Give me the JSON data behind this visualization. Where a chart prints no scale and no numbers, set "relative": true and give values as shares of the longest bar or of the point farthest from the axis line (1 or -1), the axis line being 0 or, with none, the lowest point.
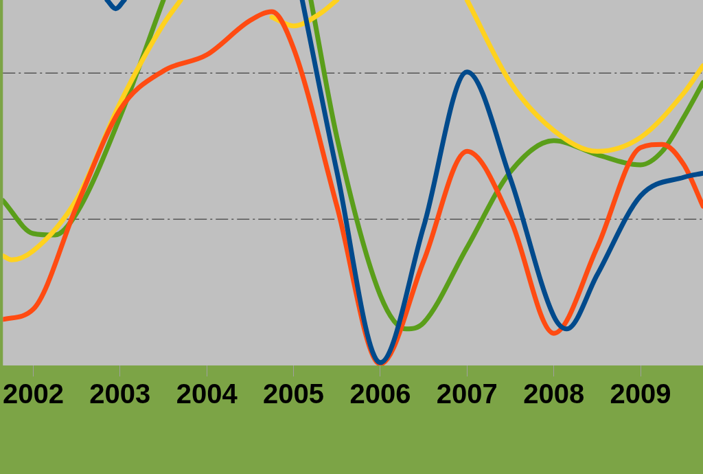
{
  "chart_data": {
    "type": "line",
    "relative": true,
    "xlim": [
      2001.65,
      2009.72
    ],
    "xticks": [
      2002,
      2003,
      2004,
      2005,
      2006,
      2007,
      2008,
      2009
    ],
    "tick_labels": "x",
    "grid": false,
    "legend": false,
    "marker": "none",
    "line_style": "solid",
    "ref_lines": [
      {
        "axis": "y",
        "value": 0.8,
        "color": "#404040",
        "line_style": "dashed"
      },
      {
        "axis": "y",
        "value": 0.4,
        "color": "#404040",
        "line_style": "dashed"
      }
    ],
    "series": [
      {
        "color": "#004a8c",
        "x": [
          2002.85,
          2002.95,
          2003.05,
          2003.2,
          2005.0,
          2005.1,
          2005.5,
          2006,
          2006.5,
          2007,
          2007.5,
          2008,
          2008.15,
          2008.5,
          2009,
          2009.5,
          2009.72
        ],
        "values": [
          1.0,
          0.976,
          1.0,
          null,
          null,
          1.0,
          0.53,
          0.008,
          0.38,
          0.803,
          0.511,
          0.135,
          0.1,
          0.248,
          0.464,
          0.515,
          0.526
        ]
      },
      {
        "color": "#ff4b12",
        "x": [
          2001.65,
          2002,
          2002.5,
          2003,
          2003.5,
          2004,
          2004.5,
          2004.75,
          2005,
          2005.5,
          2006,
          2006.5,
          2007,
          2007.5,
          2008,
          2008.5,
          2009,
          2009.25,
          2009.5,
          2009.72
        ],
        "values": [
          0.126,
          0.154,
          0.436,
          0.7,
          0.806,
          0.85,
          0.944,
          0.968,
          0.868,
          0.436,
          0.004,
          0.286,
          0.586,
          0.4,
          0.088,
          0.323,
          0.596,
          0.605,
          0.549,
          0.436
        ]
      },
      {
        "color": "#ffd21f",
        "x": [
          2001.65,
          2001.75,
          2002,
          2002.5,
          2003,
          2003.5,
          2003.7,
          2004.2,
          2004.5,
          2004.75,
          2005,
          2005.3,
          2005.5,
          2006,
          2007,
          2007.5,
          2008,
          2008.5,
          2009,
          2009.5,
          2009.72
        ],
        "values": [
          0.3,
          0.289,
          0.314,
          0.455,
          0.718,
          0.934,
          1.0,
          null,
          null,
          0.953,
          0.929,
          0.962,
          1.0,
          null,
          1.0,
          0.774,
          0.643,
          0.586,
          0.624,
          0.746,
          0.82
        ]
      },
      {
        "color": "#5a9e1a",
        "x": [
          2001.65,
          2002,
          2002.25,
          2002.5,
          2003,
          2003.5,
          2004,
          2005.2,
          2005.5,
          2006,
          2006.3,
          2006.5,
          2007,
          2007.5,
          2008,
          2008.5,
          2009,
          2009.25,
          2009.5,
          2009.72
        ],
        "values": [
          0.451,
          0.361,
          0.357,
          0.417,
          0.68,
          1.0,
          null,
          1.0,
          0.624,
          0.192,
          0.1,
          0.117,
          0.323,
          0.53,
          0.615,
          0.577,
          0.549,
          0.586,
          0.68,
          0.774
        ]
      }
    ]
  }
}
